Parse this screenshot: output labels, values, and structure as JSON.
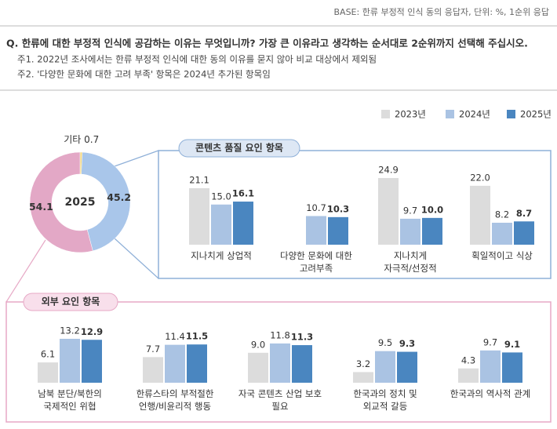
{
  "header": {
    "base": "BASE: 한류 부정적 인식 동의 응답자, 단위: %, 1순위 응답",
    "question": "Q. 한류에 대한 부정적 인식에 공감하는 이유는 무엇입니까? 가장 큰 이유라고 생각하는 순서대로 2순위까지 선택해 주십시오.",
    "notes": [
      "주1. 2022년 조사에서는 한류 부정적 인식에 대한 동의 이유를 묻지 않아 비교 대상에서 제외됨",
      "주2. '다양한 문화에 대한 고려 부족' 항목은 2024년 추가된 항목임"
    ]
  },
  "chart_data": [
    {
      "type": "pie",
      "center_label": "2025",
      "labels": [
        "기타",
        null,
        null
      ],
      "values": [
        0.7,
        45.2,
        54.1
      ],
      "colors": [
        "#f3d67a",
        "#a9c6ea",
        "#e3a8c6"
      ]
    },
    {
      "type": "bar",
      "title": "콘텐츠 품질 요인 항목",
      "legend": true,
      "categories": [
        "지나치게 상업적",
        "다양한 문화에 대한\n고려부족",
        "지나치게\n자극적/선정적",
        "획일적이고 식상"
      ],
      "series": [
        {
          "name": "2023년",
          "color": "#dcdcdc",
          "values": [
            21.1,
            null,
            24.9,
            22.0
          ],
          "value_labels": [
            "21.1",
            null,
            "24.9",
            "22.0"
          ]
        },
        {
          "name": "2024년",
          "color": "#aac3e3",
          "values": [
            15.0,
            10.7,
            9.7,
            8.2
          ],
          "value_labels": [
            "15.0",
            "10.7",
            "9.7",
            "8.2"
          ]
        },
        {
          "name": "2025년",
          "color": "#4a86c0",
          "values": [
            16.1,
            10.3,
            10.0,
            8.7
          ],
          "value_labels": [
            "16.1",
            "10.3",
            "10.0",
            "8.7"
          ]
        }
      ]
    },
    {
      "type": "bar",
      "title": "외부 요인 항목",
      "categories": [
        "남북 분단/북한의\n국제적인 위협",
        "한류스타의 부적절한\n언행/비윤리적 행동",
        "자국 콘텐츠 산업 보호\n필요",
        "한국과의 정치 및\n외교적 갈등",
        "한국과의 역사적 관계"
      ],
      "series": [
        {
          "name": "2023년",
          "color": "#dcdcdc",
          "values": [
            6.1,
            7.7,
            9.0,
            3.2,
            4.3
          ],
          "value_labels": [
            "6.1",
            "7.7",
            "9.0",
            "3.2",
            "4.3"
          ]
        },
        {
          "name": "2024년",
          "color": "#aac3e3",
          "values": [
            13.2,
            11.4,
            11.8,
            9.5,
            9.7
          ],
          "value_labels": [
            "13.2",
            "11.4",
            "11.8",
            "9.5",
            "9.7"
          ]
        },
        {
          "name": "2025년",
          "color": "#4a86c0",
          "values": [
            12.9,
            11.5,
            11.3,
            9.3,
            9.1
          ],
          "value_labels": [
            "12.9",
            "11.5",
            "11.3",
            "9.3",
            "9.1"
          ]
        }
      ]
    }
  ]
}
